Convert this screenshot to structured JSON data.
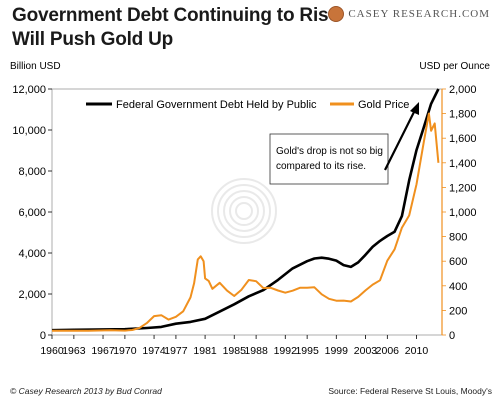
{
  "header": {
    "title_line1": "Government Debt Continuing to Rise",
    "title_line2": "Will Push Gold Up",
    "brand_main": "CASEY RESEARCH",
    "brand_suffix": ".COM"
  },
  "footer": {
    "credit": "© Casey Research 2013 by Bud Conrad",
    "source": "Source: Federal Reserve St Louis, Moody's"
  },
  "colors": {
    "debt": "#000000",
    "gold": "#f0901e",
    "gold_axis": "#f0901e",
    "seal": "#c8743a"
  },
  "chart_data": {
    "type": "line",
    "y_left_label": "Billion USD",
    "y_right_label": "USD per Ounce",
    "x_ticks": [
      "1960",
      "1963",
      "1967",
      "1970",
      "1974",
      "1977",
      "1981",
      "1985",
      "1988",
      "1992",
      "1995",
      "1999",
      "2003",
      "2006",
      "2010"
    ],
    "x_range": [
      1960,
      2013.5
    ],
    "y_left_ticks": [
      "0",
      "2,000",
      "4,000",
      "6,000",
      "8,000",
      "10,000",
      "12,000"
    ],
    "y_left_range": [
      0,
      12000
    ],
    "y_right_ticks": [
      "0",
      "200",
      "400",
      "600",
      "800",
      "1,000",
      "1,200",
      "1,400",
      "1,600",
      "1,800",
      "2,000"
    ],
    "y_right_range": [
      0,
      2000
    ],
    "legend": {
      "position": "top",
      "debt": "Federal Government Debt Held by Public",
      "gold": "Gold Price"
    },
    "annotation": {
      "line1": "Gold's drop is not so big",
      "line2": "compared to its rise."
    },
    "series": [
      {
        "name": "Federal Government Debt Held by Public",
        "axis": "left",
        "x": [
          1960,
          1963,
          1966,
          1970,
          1973,
          1975,
          1977,
          1979,
          1981,
          1983,
          1985,
          1987,
          1989,
          1991,
          1993,
          1995,
          1996,
          1997,
          1998,
          1999,
          2000,
          2001,
          2002,
          2003,
          2004,
          2005,
          2006,
          2007,
          2008,
          2009,
          2010,
          2011,
          2012,
          2013
        ],
        "values": [
          236,
          254,
          264,
          283,
          340,
          395,
          549,
          640,
          790,
          1140,
          1500,
          1890,
          2190,
          2690,
          3250,
          3600,
          3730,
          3770,
          3720,
          3630,
          3410,
          3320,
          3540,
          3910,
          4300,
          4590,
          4830,
          5040,
          5800,
          7550,
          9020,
          10130,
          11280,
          12000
        ]
      },
      {
        "name": "Gold Price",
        "axis": "right",
        "x": [
          1960,
          1965,
          1968,
          1970,
          1971,
          1972,
          1973,
          1974,
          1975,
          1976,
          1977,
          1978,
          1979,
          1979.5,
          1980,
          1980.4,
          1980.8,
          1981,
          1981.5,
          1982,
          1983,
          1984,
          1985,
          1986,
          1987,
          1988,
          1989,
          1990,
          1991,
          1992,
          1993,
          1994,
          1995,
          1996,
          1997,
          1998,
          1999,
          2000,
          2001,
          2002,
          2003,
          2004,
          2005,
          2006,
          2007,
          2008,
          2009,
          2010,
          2011,
          2011.7,
          2012,
          2012.5,
          2013
        ],
        "values": [
          35,
          35,
          39,
          36,
          41,
          58,
          97,
          154,
          161,
          125,
          148,
          193,
          306,
          420,
          615,
          640,
          600,
          460,
          440,
          376,
          424,
          361,
          317,
          368,
          447,
          437,
          381,
          384,
          362,
          344,
          360,
          384,
          384,
          388,
          331,
          294,
          279,
          280,
          272,
          310,
          363,
          410,
          445,
          604,
          697,
          872,
          972,
          1225,
          1570,
          1800,
          1660,
          1720,
          1400
        ]
      }
    ]
  }
}
